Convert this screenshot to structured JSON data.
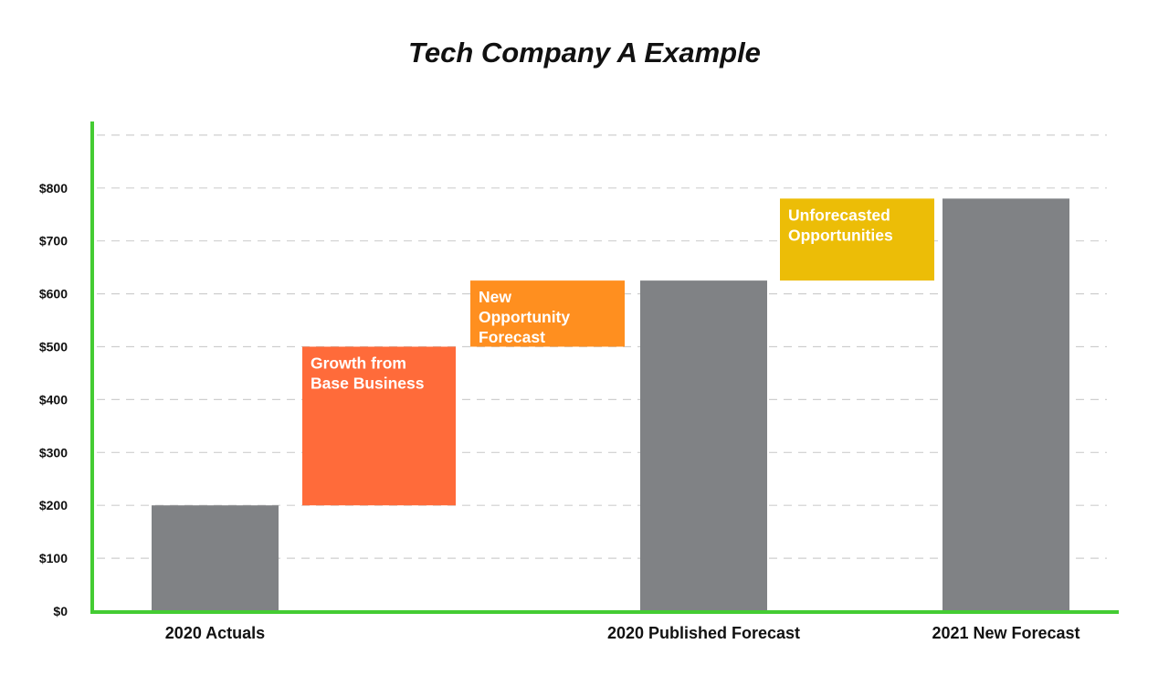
{
  "chart_data": {
    "type": "bar",
    "subtype": "waterfall",
    "title": "Tech Company A Example",
    "xlabel": "",
    "ylabel": "",
    "ylim": [
      0,
      900
    ],
    "y_ticks": [
      0,
      100,
      200,
      300,
      400,
      500,
      600,
      700,
      800
    ],
    "y_tick_labels": [
      "$0",
      "$100",
      "$200",
      "$300",
      "$400",
      "$500",
      "$600",
      "$700",
      "$800"
    ],
    "grid": "dashed-horizontal",
    "steps": [
      {
        "kind": "total",
        "category": "2020 Actuals",
        "label": "",
        "base": 0,
        "value": 200,
        "color": "#808285"
      },
      {
        "kind": "delta",
        "category": "",
        "label": "Growth from\nBase Business",
        "base": 200,
        "value": 300,
        "color": "#FF6B3A"
      },
      {
        "kind": "delta",
        "category": "",
        "label": "New\nOpportunity\nForecast",
        "base": 500,
        "value": 125,
        "color": "#FF8F1F"
      },
      {
        "kind": "total",
        "category": "2020 Published Forecast",
        "label": "",
        "base": 0,
        "value": 625,
        "color": "#808285"
      },
      {
        "kind": "delta",
        "category": "",
        "label": "Unforecasted\nOpportunities",
        "base": 625,
        "value": 155,
        "color": "#ECBD07"
      },
      {
        "kind": "total",
        "category": "2021 New Forecast",
        "label": "",
        "base": 0,
        "value": 780,
        "color": "#808285"
      }
    ],
    "axis_color": "#44CC33",
    "grid_color": "#CFCFCF"
  }
}
